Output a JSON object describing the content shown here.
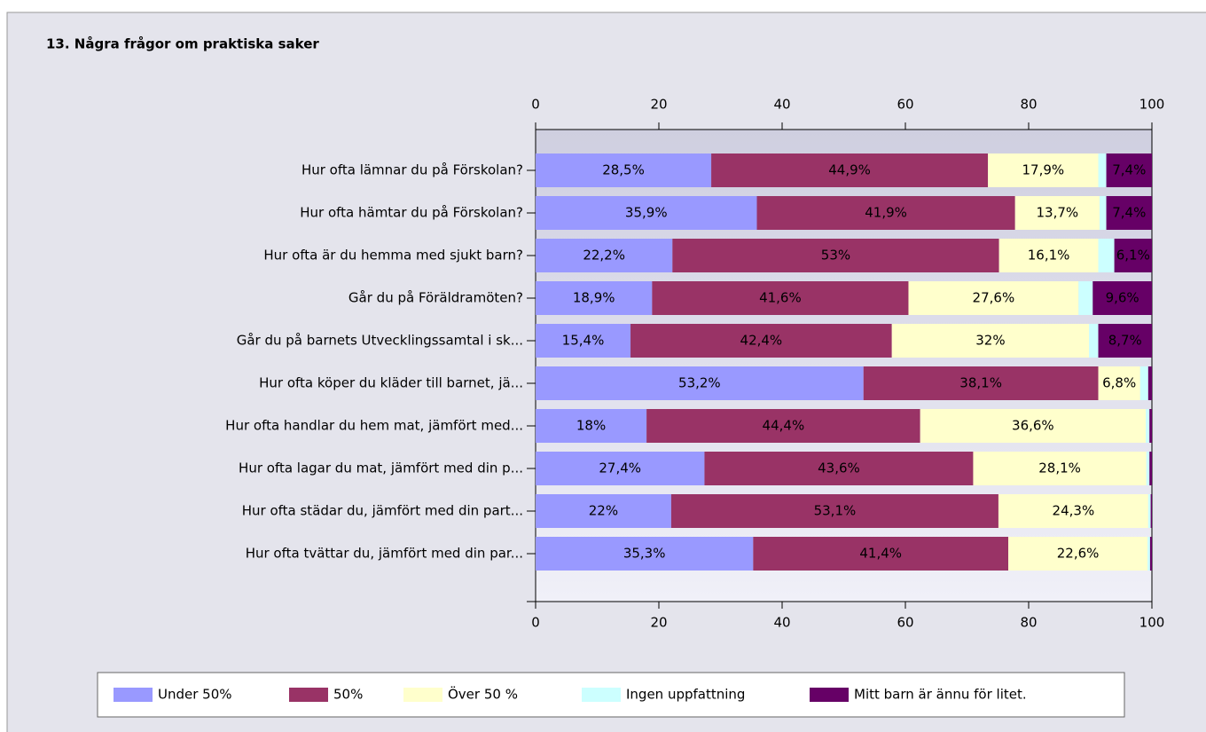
{
  "chart_data": {
    "type": "stacked_bar_horizontal",
    "title": "13. Några frågor om praktiska saker",
    "categories": [
      "Hur ofta lämnar du på Förskolan?",
      "Hur ofta hämtar du på Förskolan?",
      "Hur ofta är du hemma med sjukt barn?",
      "Går du på Föräldramöten?",
      "Går du på barnets Utvecklingssamtal i sk...",
      "Hur ofta köper du kläder till barnet, jä...",
      "Hur ofta handlar du hem mat, jämfört med...",
      "Hur ofta lagar du mat, jämfört med din p...",
      "Hur ofta städar du, jämfört med din part...",
      "Hur ofta tvättar du, jämfört med din par..."
    ],
    "series": [
      {
        "name": "Under 50%",
        "color": "#9999ff",
        "values": [
          28.5,
          35.9,
          22.2,
          18.9,
          15.4,
          53.2,
          18,
          27.4,
          22,
          35.3
        ],
        "value_labels": [
          "28,5%",
          "35,9%",
          "22,2%",
          "18,9%",
          "15,4%",
          "53,2%",
          "18%",
          "27,4%",
          "22%",
          "35,3%"
        ]
      },
      {
        "name": "50%",
        "color": "#993366",
        "values": [
          44.9,
          41.9,
          53,
          41.6,
          42.4,
          38.1,
          44.4,
          43.6,
          53.1,
          41.4
        ],
        "value_labels": [
          "44,9%",
          "41,9%",
          "53%",
          "41,6%",
          "42,4%",
          "38,1%",
          "44,4%",
          "43,6%",
          "53,1%",
          "41,4%"
        ]
      },
      {
        "name": "Över 50 %",
        "color": "#ffffcc",
        "values": [
          17.9,
          13.7,
          16.1,
          27.6,
          32,
          6.8,
          36.6,
          28.1,
          24.3,
          22.6
        ],
        "value_labels": [
          "17,9%",
          "13,7%",
          "16,1%",
          "27,6%",
          "32%",
          "6,8%",
          "36,6%",
          "28,1%",
          "24,3%",
          "22,6%"
        ]
      },
      {
        "name": "Ingen uppfattning",
        "color": "#ccffff",
        "values": [
          1.3,
          1.1,
          2.6,
          2.3,
          1.5,
          1.3,
          0.6,
          0.5,
          0.4,
          0.4
        ],
        "value_labels": [
          null,
          null,
          null,
          null,
          null,
          null,
          null,
          null,
          null,
          null
        ]
      },
      {
        "name": "Mitt barn är ännu för litet.",
        "color": "#660066",
        "values": [
          7.4,
          7.4,
          6.1,
          9.6,
          8.7,
          0.6,
          0.4,
          0.4,
          0.2,
          0.3
        ],
        "value_labels": [
          "7,4%",
          "7,4%",
          "6,1%",
          "9,6%",
          "8,7%",
          null,
          null,
          null,
          null,
          null
        ]
      }
    ],
    "xlim": [
      0,
      100
    ],
    "xticks": [
      0,
      20,
      40,
      60,
      80,
      100
    ]
  }
}
